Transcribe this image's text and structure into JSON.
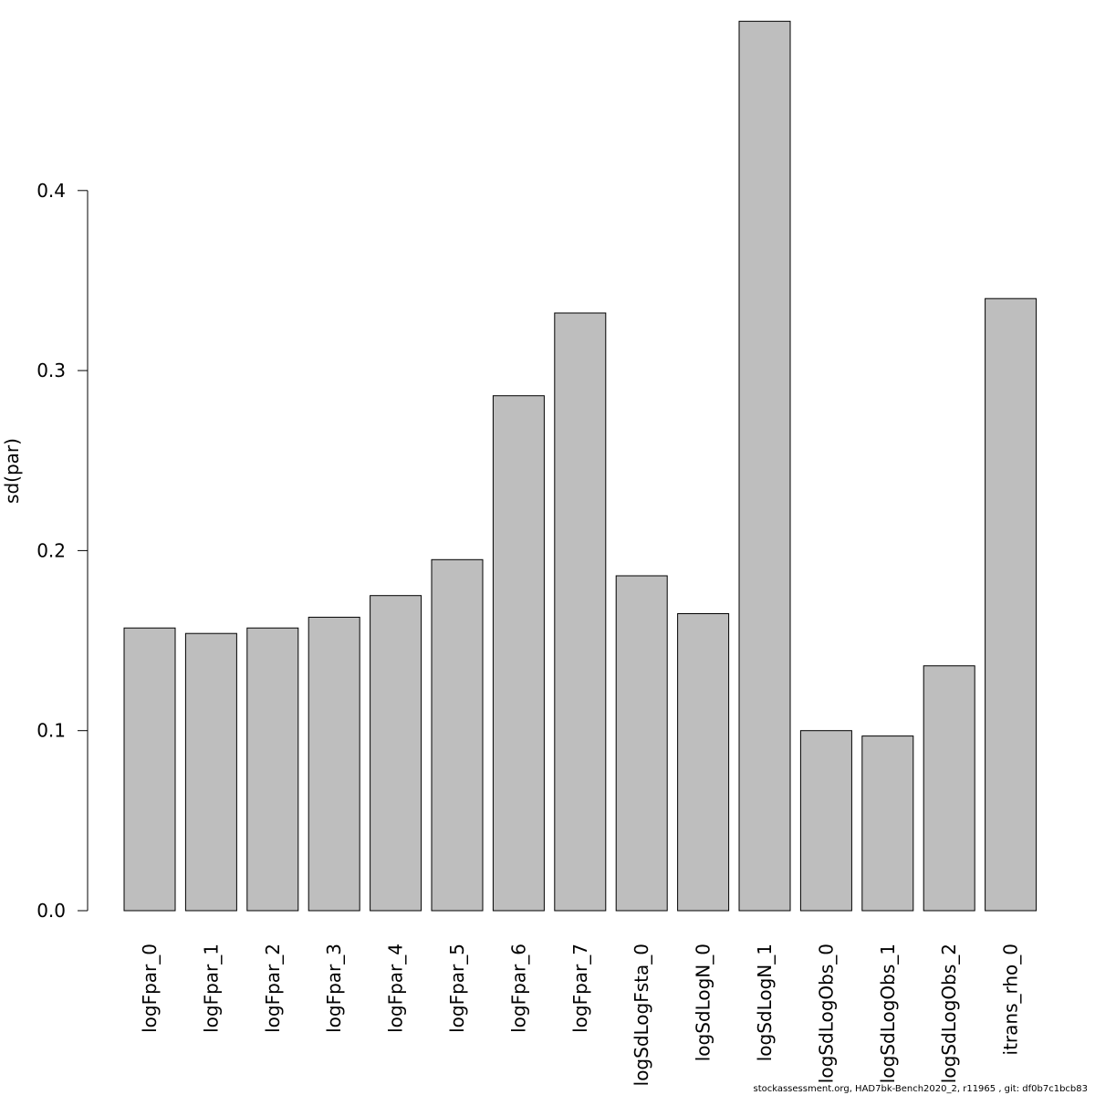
{
  "chart_data": {
    "type": "bar",
    "title": "",
    "xlabel": "",
    "ylabel": "sd(par)",
    "ylim": [
      0,
      0.5
    ],
    "yticks": [
      0.0,
      0.1,
      0.2,
      0.3,
      0.4
    ],
    "ytick_labels": [
      "0.0",
      "0.1",
      "0.2",
      "0.3",
      "0.4"
    ],
    "grid": false,
    "bar_color": "#bebebe",
    "bar_border_color": "#000000",
    "categories": [
      "logFpar_0",
      "logFpar_1",
      "logFpar_2",
      "logFpar_3",
      "logFpar_4",
      "logFpar_5",
      "logFpar_6",
      "logFpar_7",
      "logSdLogFsta_0",
      "logSdLogN_0",
      "logSdLogN_1",
      "logSdLogObs_0",
      "logSdLogObs_1",
      "logSdLogObs_2",
      "itrans_rho_0"
    ],
    "values": [
      0.157,
      0.154,
      0.157,
      0.163,
      0.175,
      0.195,
      0.286,
      0.332,
      0.186,
      0.165,
      0.494,
      0.1,
      0.097,
      0.136,
      0.34
    ]
  },
  "footer": "stockassessment.org, HAD7bk-Bench2020_2, r11965 , git: df0b7c1bcb83"
}
